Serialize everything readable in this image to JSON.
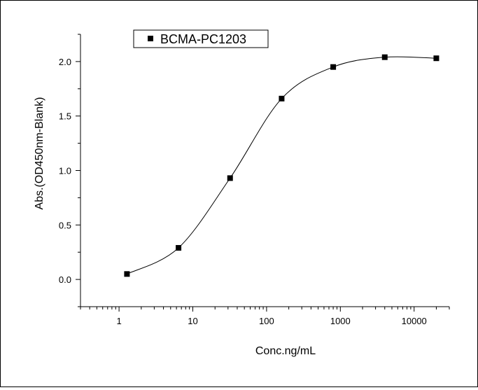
{
  "chart_data": {
    "type": "scatter",
    "xlabel": "Conc.ng/mL",
    "ylabel": "Abs.(OD450nm-Blank)",
    "xscale": "log",
    "xlim": [
      0.3,
      30000
    ],
    "ylim": [
      -0.25,
      2.25
    ],
    "x_ticks": [
      1,
      10,
      100,
      1000,
      10000
    ],
    "x_tick_labels": [
      "1",
      "10",
      "100",
      "1000",
      "10000"
    ],
    "y_ticks": [
      0.0,
      0.5,
      1.0,
      1.5,
      2.0
    ],
    "y_tick_labels": [
      "0.0",
      "0.5",
      "1.0",
      "1.5",
      "2.0"
    ],
    "legend_position": "top-left",
    "grid": false,
    "fit": "sigmoid (4PL) curve through points",
    "series": [
      {
        "name": "BCMA-PC1203",
        "marker": "square",
        "color": "#000000",
        "x": [
          1.28,
          6.4,
          32,
          160,
          800,
          4000,
          20000
        ],
        "y": [
          0.05,
          0.29,
          0.93,
          1.66,
          1.95,
          2.04,
          2.03
        ]
      }
    ]
  }
}
